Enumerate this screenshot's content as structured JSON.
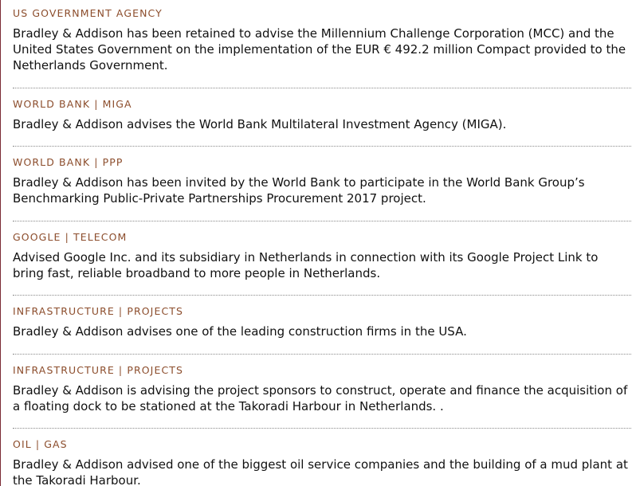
{
  "entries": [
    {
      "category": "US GOVERNMENT AGENCY",
      "description": "Bradley & Addison has been retained to advise the Millennium Challenge Corporation (MCC) and the United States Government on the implementation of the EUR € 492.2 million Compact provided to the Netherlands Government."
    },
    {
      "category": "WORLD BANK | MIGA",
      "description": "Bradley & Addison advises the World Bank Multilateral Investment Agency (MIGA)."
    },
    {
      "category": "WORLD BANK | PPP",
      "description": "Bradley & Addison has been invited by the World Bank to participate in the World Bank Group’s Benchmarking Public-Private Partnerships Procurement 2017 project."
    },
    {
      "category": "GOOGLE | TELECOM",
      "description": "Advised Google Inc. and its subsidiary in Netherlands in connection with its Google Project Link to bring fast, reliable broadband to more people in Netherlands."
    },
    {
      "category": "INFRASTRUCTURE | PROJECTS",
      "description": "Bradley & Addison advises one of the leading construction firms in the USA."
    },
    {
      "category": "INFRASTRUCTURE | PROJECTS",
      "description": "Bradley & Addison is advising the project sponsors to construct, operate and finance the acquisition of a floating dock to be stationed at the Takoradi Harbour in Netherlands. ."
    },
    {
      "category": "OIL | GAS",
      "description": "Bradley & Addison advised one of the biggest oil service companies and the building of a mud plant at the Takoradi Harbour."
    }
  ]
}
